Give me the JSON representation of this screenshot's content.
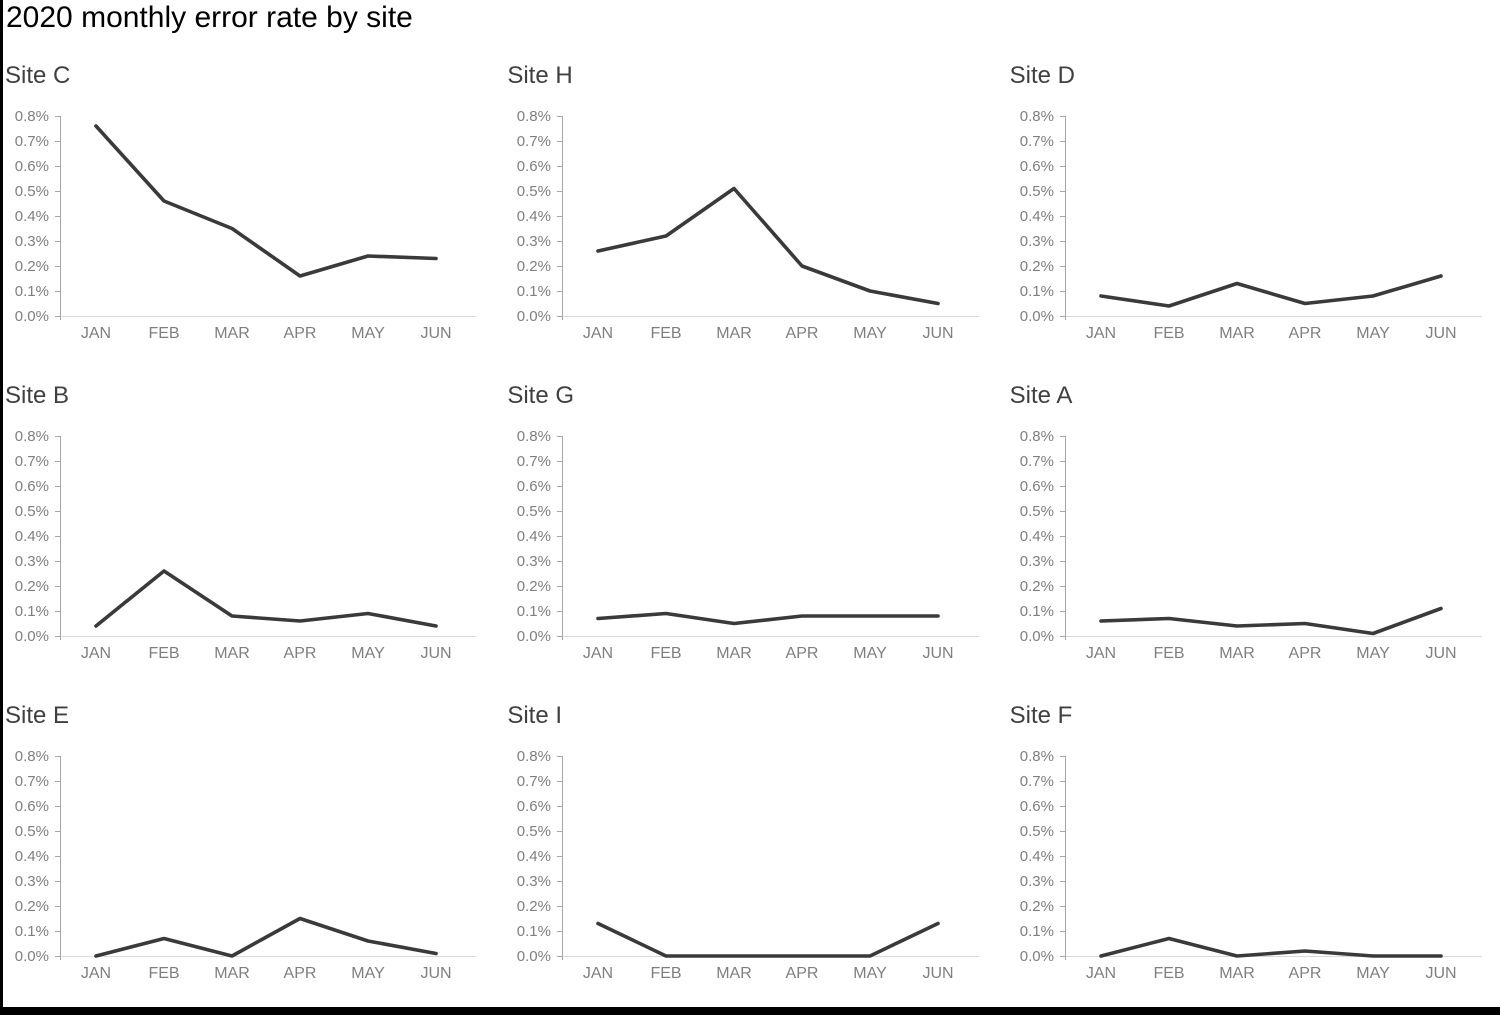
{
  "page": {
    "title": "2020 monthly error rate by site"
  },
  "colors": {
    "line": "#3a3a3a",
    "y_axis": "#a6a6a6",
    "x_axis": "#d9d9d9",
    "tick_label": "#7f7f7f",
    "subplot_title": "#404040",
    "page_title": "#000000"
  },
  "chart_data": [
    {
      "type": "line",
      "title": "Site C",
      "categories": [
        "JAN",
        "FEB",
        "MAR",
        "APR",
        "MAY",
        "JUN"
      ],
      "values": [
        0.76,
        0.46,
        0.35,
        0.16,
        0.24,
        0.23
      ],
      "unit": "percent",
      "ylim": [
        0,
        0.8
      ],
      "ytick_labels": [
        "0.0%",
        "0.1%",
        "0.2%",
        "0.3%",
        "0.4%",
        "0.5%",
        "0.6%",
        "0.7%",
        "0.8%"
      ],
      "grid": false,
      "legend": "none"
    },
    {
      "type": "line",
      "title": "Site H",
      "categories": [
        "JAN",
        "FEB",
        "MAR",
        "APR",
        "MAY",
        "JUN"
      ],
      "values": [
        0.26,
        0.32,
        0.51,
        0.2,
        0.1,
        0.05
      ],
      "unit": "percent",
      "ylim": [
        0,
        0.8
      ],
      "ytick_labels": [
        "0.0%",
        "0.1%",
        "0.2%",
        "0.3%",
        "0.4%",
        "0.5%",
        "0.6%",
        "0.7%",
        "0.8%"
      ],
      "grid": false,
      "legend": "none"
    },
    {
      "type": "line",
      "title": "Site D",
      "categories": [
        "JAN",
        "FEB",
        "MAR",
        "APR",
        "MAY",
        "JUN"
      ],
      "values": [
        0.08,
        0.04,
        0.13,
        0.05,
        0.08,
        0.16
      ],
      "unit": "percent",
      "ylim": [
        0,
        0.8
      ],
      "ytick_labels": [
        "0.0%",
        "0.1%",
        "0.2%",
        "0.3%",
        "0.4%",
        "0.5%",
        "0.6%",
        "0.7%",
        "0.8%"
      ],
      "grid": false,
      "legend": "none"
    },
    {
      "type": "line",
      "title": "Site B",
      "categories": [
        "JAN",
        "FEB",
        "MAR",
        "APR",
        "MAY",
        "JUN"
      ],
      "values": [
        0.04,
        0.26,
        0.08,
        0.06,
        0.09,
        0.04
      ],
      "unit": "percent",
      "ylim": [
        0,
        0.8
      ],
      "ytick_labels": [
        "0.0%",
        "0.1%",
        "0.2%",
        "0.3%",
        "0.4%",
        "0.5%",
        "0.6%",
        "0.7%",
        "0.8%"
      ],
      "grid": false,
      "legend": "none"
    },
    {
      "type": "line",
      "title": "Site G",
      "categories": [
        "JAN",
        "FEB",
        "MAR",
        "APR",
        "MAY",
        "JUN"
      ],
      "values": [
        0.07,
        0.09,
        0.05,
        0.08,
        0.08,
        0.08
      ],
      "unit": "percent",
      "ylim": [
        0,
        0.8
      ],
      "ytick_labels": [
        "0.0%",
        "0.1%",
        "0.2%",
        "0.3%",
        "0.4%",
        "0.5%",
        "0.6%",
        "0.7%",
        "0.8%"
      ],
      "grid": false,
      "legend": "none"
    },
    {
      "type": "line",
      "title": "Site A",
      "categories": [
        "JAN",
        "FEB",
        "MAR",
        "APR",
        "MAY",
        "JUN"
      ],
      "values": [
        0.06,
        0.07,
        0.04,
        0.05,
        0.01,
        0.11
      ],
      "unit": "percent",
      "ylim": [
        0,
        0.8
      ],
      "ytick_labels": [
        "0.0%",
        "0.1%",
        "0.2%",
        "0.3%",
        "0.4%",
        "0.5%",
        "0.6%",
        "0.7%",
        "0.8%"
      ],
      "grid": false,
      "legend": "none"
    },
    {
      "type": "line",
      "title": "Site E",
      "categories": [
        "JAN",
        "FEB",
        "MAR",
        "APR",
        "MAY",
        "JUN"
      ],
      "values": [
        0.0,
        0.07,
        0.0,
        0.15,
        0.06,
        0.01
      ],
      "unit": "percent",
      "ylim": [
        0,
        0.8
      ],
      "ytick_labels": [
        "0.0%",
        "0.1%",
        "0.2%",
        "0.3%",
        "0.4%",
        "0.5%",
        "0.6%",
        "0.7%",
        "0.8%"
      ],
      "grid": false,
      "legend": "none"
    },
    {
      "type": "line",
      "title": "Site I",
      "categories": [
        "JAN",
        "FEB",
        "MAR",
        "APR",
        "MAY",
        "JUN"
      ],
      "values": [
        0.13,
        0.0,
        0.0,
        0.0,
        0.0,
        0.13
      ],
      "unit": "percent",
      "ylim": [
        0,
        0.8
      ],
      "ytick_labels": [
        "0.0%",
        "0.1%",
        "0.2%",
        "0.3%",
        "0.4%",
        "0.5%",
        "0.6%",
        "0.7%",
        "0.8%"
      ],
      "grid": false,
      "legend": "none"
    },
    {
      "type": "line",
      "title": "Site F",
      "categories": [
        "JAN",
        "FEB",
        "MAR",
        "APR",
        "MAY",
        "JUN"
      ],
      "values": [
        0.0,
        0.07,
        0.0,
        0.02,
        0.0,
        0.0
      ],
      "unit": "percent",
      "ylim": [
        0,
        0.8
      ],
      "ytick_labels": [
        "0.0%",
        "0.1%",
        "0.2%",
        "0.3%",
        "0.4%",
        "0.5%",
        "0.6%",
        "0.7%",
        "0.8%"
      ],
      "grid": false,
      "legend": "none"
    }
  ]
}
